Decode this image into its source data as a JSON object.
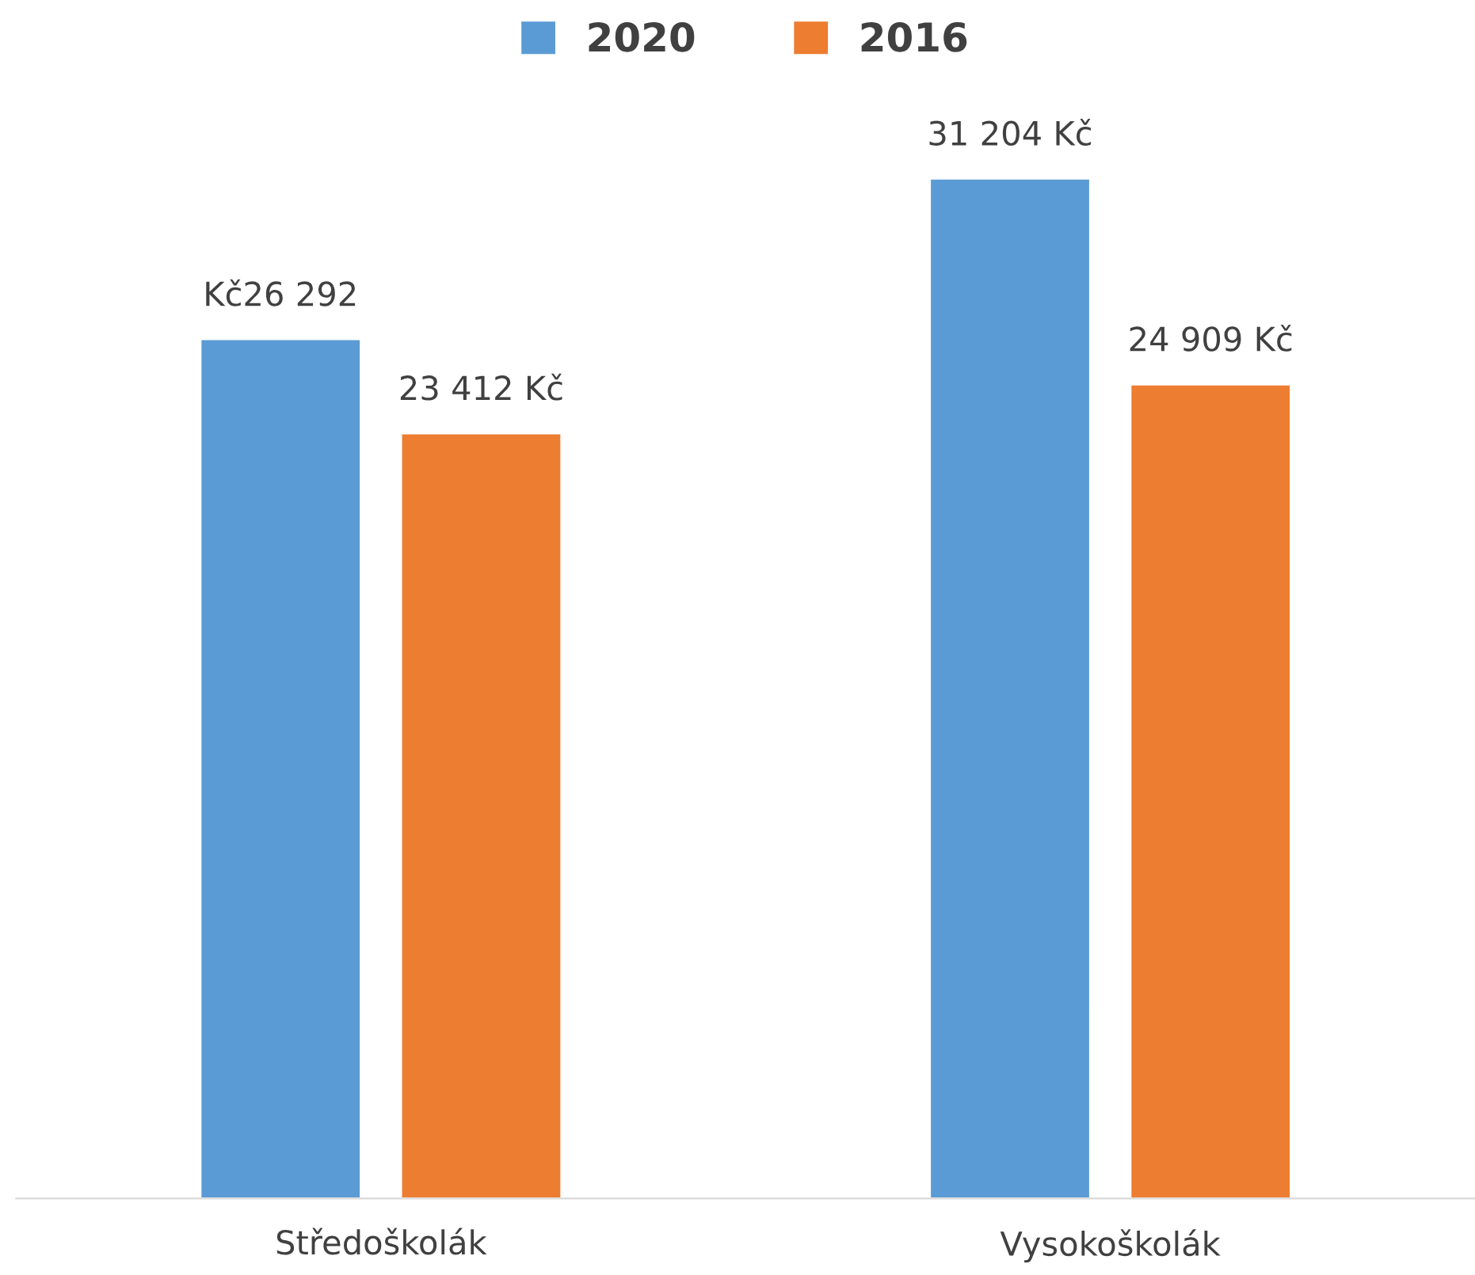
{
  "chart_data": {
    "type": "bar",
    "categories": [
      "Středoškolák",
      "Vysokoškolák"
    ],
    "series": [
      {
        "name": "2020",
        "color": "#5b9bd5",
        "values": [
          26292,
          31204
        ],
        "value_labels": [
          "Kč26 292",
          "31 204 Kč"
        ]
      },
      {
        "name": "2016",
        "color": "#ed7d31",
        "values": [
          23412,
          24909
        ],
        "value_labels": [
          "23 412 Kč",
          "24 909 Kč"
        ]
      }
    ],
    "legend": "top",
    "grid": false
  }
}
